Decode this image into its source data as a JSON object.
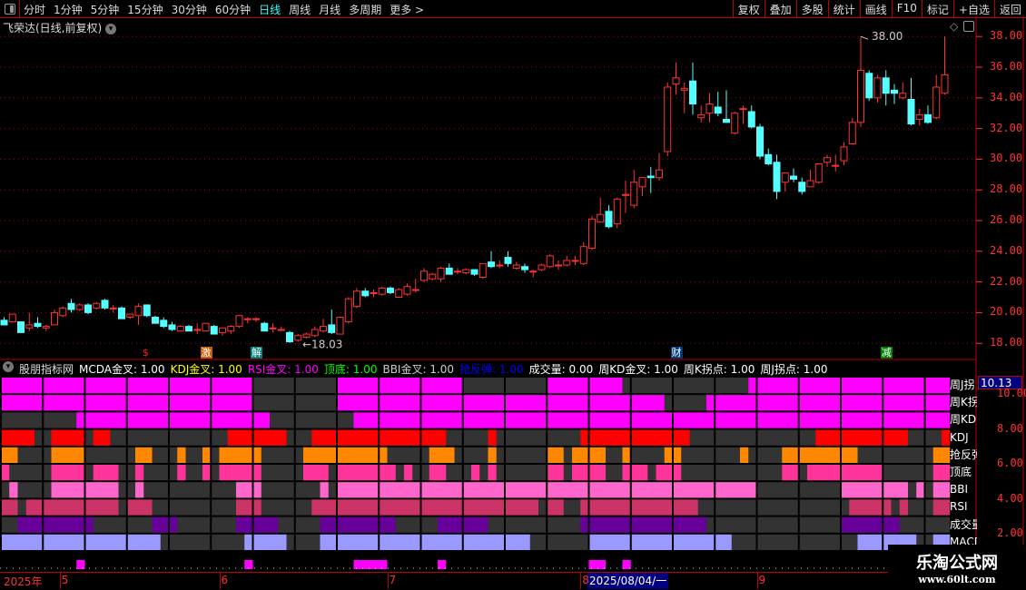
{
  "toolbar": {
    "periods": [
      "分时",
      "1分钟",
      "5分钟",
      "15分钟",
      "30分钟",
      "60分钟",
      "日线",
      "周线",
      "月线",
      "多周期",
      "更多 >"
    ],
    "active_period": "日线",
    "buttons": [
      "复权",
      "叠加",
      "多股",
      "统计",
      "画线",
      "F10",
      "标记",
      "+自选",
      "返回"
    ]
  },
  "stock_title": "飞荣达(日线,前复权)",
  "colors": {
    "up": "#ff3333",
    "down": "#54ffff",
    "axis": "#ff3333",
    "grid": "#aa0000"
  },
  "price_axis": {
    "labels": [
      "38.00",
      "36.00",
      "34.00",
      "32.00",
      "30.00",
      "28.00",
      "26.00",
      "24.00",
      "22.00",
      "20.00",
      "18.00"
    ],
    "max_label": "38.00",
    "min_label": "18.03"
  },
  "markers": [
    {
      "text": "$",
      "day": 17,
      "color": "#ff2222",
      "bg": "transparent"
    },
    {
      "text": "激",
      "day": 24,
      "color": "#fff",
      "bg": "#c85a00"
    },
    {
      "text": "解",
      "day": 30,
      "color": "#fff",
      "bg": "#008080"
    },
    {
      "text": "财",
      "day": 80,
      "color": "#fff",
      "bg": "#003a7a"
    },
    {
      "text": "减",
      "day": 105,
      "color": "#fff",
      "bg": "#008000"
    }
  ],
  "indicator": {
    "name": "股朋指标网",
    "items": [
      {
        "label": "MCDA金叉: 1.00",
        "color": "#ffffff"
      },
      {
        "label": "KDJ金叉: 1.00",
        "color": "#ffff00"
      },
      {
        "label": "RSI金叉: 1.00",
        "color": "#ff00ff"
      },
      {
        "label": "顶底: 1.00",
        "color": "#00ff00"
      },
      {
        "label": "BBI金叉: 1.00",
        "color": "#cccccc"
      },
      {
        "label": "抢反弹: 1.00",
        "color": "#0000ff"
      },
      {
        "label": "成交量: 0.00",
        "color": "#ffffff"
      },
      {
        "label": "周KD金叉: 1.00",
        "color": "#ffffff"
      },
      {
        "label": "周K拐点: 1.00",
        "color": "#ffffff"
      },
      {
        "label": "周J拐点: 1.00",
        "color": "#ffffff"
      }
    ],
    "axis_labels": [
      "10.00",
      "8.00",
      "6.00",
      "4.00",
      "2.00"
    ],
    "current_value": "10.13"
  },
  "chart_data": {
    "type": "candlestick",
    "ylim": [
      17,
      39
    ],
    "candles": [
      [
        19.5,
        19.7,
        19.2,
        19.2
      ],
      [
        19.4,
        19.9,
        19.4,
        19.9
      ],
      [
        19.4,
        19.4,
        18.7,
        18.7
      ],
      [
        19.0,
        20.0,
        18.8,
        19.2
      ],
      [
        19.3,
        19.7,
        19.0,
        19.1
      ],
      [
        19.0,
        19.2,
        18.8,
        19.1
      ],
      [
        19.2,
        20.2,
        19.2,
        20.0
      ],
      [
        19.8,
        20.4,
        19.7,
        20.3
      ],
      [
        20.6,
        20.9,
        20.0,
        20.2
      ],
      [
        20.2,
        20.6,
        20.1,
        20.5
      ],
      [
        20.5,
        20.6,
        19.9,
        20.0
      ],
      [
        20.3,
        20.7,
        20.2,
        20.6
      ],
      [
        20.8,
        20.9,
        20.2,
        20.3
      ],
      [
        20.3,
        20.5,
        20.0,
        20.3
      ],
      [
        20.3,
        20.4,
        19.6,
        19.6
      ],
      [
        19.7,
        19.9,
        19.6,
        19.9
      ],
      [
        19.8,
        20.6,
        19.2,
        20.4
      ],
      [
        20.5,
        20.5,
        19.7,
        19.8
      ],
      [
        19.7,
        19.8,
        19.3,
        19.3
      ],
      [
        19.5,
        19.7,
        19.0,
        19.1
      ],
      [
        19.2,
        19.4,
        18.8,
        18.9
      ],
      [
        18.8,
        19.2,
        18.8,
        19.1
      ],
      [
        19.1,
        19.2,
        18.8,
        18.8
      ],
      [
        18.9,
        19.3,
        18.6,
        18.9
      ],
      [
        18.8,
        19.3,
        18.8,
        19.3
      ],
      [
        19.1,
        19.2,
        18.6,
        18.6
      ],
      [
        18.7,
        19.0,
        18.5,
        19.0
      ],
      [
        18.8,
        19.2,
        18.6,
        19.1
      ],
      [
        19.1,
        19.8,
        19.0,
        19.8
      ],
      [
        19.6,
        19.7,
        19.3,
        19.6
      ],
      [
        19.6,
        19.7,
        19.4,
        19.6
      ],
      [
        19.3,
        19.4,
        18.8,
        18.8
      ],
      [
        19.0,
        19.3,
        18.7,
        19.0
      ],
      [
        18.9,
        19.1,
        18.8,
        18.9
      ],
      [
        18.7,
        18.8,
        18.03,
        18.1
      ],
      [
        18.2,
        18.6,
        18.1,
        18.5
      ],
      [
        18.4,
        18.7,
        18.3,
        18.6
      ],
      [
        18.5,
        19.1,
        18.4,
        18.9
      ],
      [
        18.8,
        19.6,
        18.7,
        19.1
      ],
      [
        19.2,
        20.2,
        18.6,
        18.7
      ],
      [
        18.6,
        19.7,
        18.6,
        19.7
      ],
      [
        19.4,
        21.0,
        19.3,
        20.9
      ],
      [
        20.4,
        21.6,
        20.3,
        21.4
      ],
      [
        21.4,
        21.6,
        21.0,
        21.1
      ],
      [
        21.3,
        21.5,
        21.0,
        21.3
      ],
      [
        21.2,
        21.7,
        21.1,
        21.6
      ],
      [
        21.6,
        21.7,
        21.2,
        21.3
      ],
      [
        21.0,
        21.6,
        21.0,
        21.5
      ],
      [
        21.2,
        21.9,
        21.1,
        21.7
      ],
      [
        21.5,
        22.2,
        21.3,
        21.5
      ],
      [
        22.1,
        22.9,
        22.0,
        22.7
      ],
      [
        22.2,
        22.6,
        22.1,
        22.5
      ],
      [
        22.2,
        23.0,
        22.0,
        22.9
      ],
      [
        22.9,
        23.2,
        22.5,
        22.5
      ],
      [
        22.7,
        22.9,
        22.5,
        22.7
      ],
      [
        22.6,
        22.9,
        22.5,
        22.8
      ],
      [
        22.8,
        22.8,
        22.4,
        22.5
      ],
      [
        22.3,
        23.2,
        22.2,
        23.2
      ],
      [
        23.3,
        24.0,
        22.9,
        23.0
      ],
      [
        23.1,
        23.4,
        22.9,
        23.1
      ],
      [
        23.6,
        24.0,
        23.0,
        23.2
      ],
      [
        22.9,
        23.3,
        22.8,
        23.1
      ],
      [
        23.0,
        23.2,
        22.6,
        22.8
      ],
      [
        22.7,
        22.8,
        22.3,
        22.7
      ],
      [
        22.8,
        23.2,
        22.7,
        23.1
      ],
      [
        23.0,
        23.8,
        22.9,
        23.7
      ],
      [
        23.1,
        23.4,
        22.8,
        23.1
      ],
      [
        23.1,
        23.7,
        23.0,
        23.4
      ],
      [
        23.4,
        23.7,
        23.1,
        23.4
      ],
      [
        23.2,
        24.6,
        23.1,
        24.3
      ],
      [
        24.2,
        26.3,
        24.1,
        26.1
      ],
      [
        25.9,
        27.5,
        25.9,
        26.4
      ],
      [
        26.6,
        27.0,
        25.5,
        25.6
      ],
      [
        25.8,
        27.5,
        25.5,
        27.4
      ],
      [
        27.7,
        28.6,
        26.5,
        27.7
      ],
      [
        27.0,
        29.3,
        26.8,
        28.5
      ],
      [
        28.2,
        28.8,
        27.6,
        28.8
      ],
      [
        28.9,
        29.5,
        27.8,
        28.8
      ],
      [
        28.8,
        30.4,
        28.6,
        29.3
      ],
      [
        30.5,
        35.0,
        30.2,
        34.7
      ],
      [
        34.9,
        36.3,
        34.2,
        35.3
      ],
      [
        34.5,
        35.0,
        33.0,
        34.6
      ],
      [
        35.1,
        36.3,
        32.9,
        33.6
      ],
      [
        32.7,
        33.5,
        32.4,
        32.9
      ],
      [
        33.0,
        34.3,
        32.4,
        33.6
      ],
      [
        33.4,
        34.4,
        32.8,
        33.0
      ],
      [
        32.6,
        34.5,
        32.4,
        32.4
      ],
      [
        31.7,
        33.1,
        31.6,
        33.0
      ],
      [
        33.3,
        33.5,
        32.3,
        33.3
      ],
      [
        33.1,
        33.5,
        32.0,
        32.1
      ],
      [
        32.1,
        32.3,
        30.0,
        30.2
      ],
      [
        30.3,
        30.7,
        29.6,
        29.7
      ],
      [
        29.8,
        30.3,
        27.4,
        27.9
      ],
      [
        28.5,
        29.1,
        27.9,
        29.1
      ],
      [
        28.9,
        29.4,
        28.5,
        28.7
      ],
      [
        28.5,
        28.8,
        27.7,
        27.9
      ],
      [
        28.2,
        29.3,
        28.2,
        28.6
      ],
      [
        28.5,
        29.7,
        28.4,
        29.7
      ],
      [
        29.8,
        30.3,
        29.5,
        30.1
      ],
      [
        29.6,
        30.3,
        29.2,
        29.6
      ],
      [
        29.9,
        31.1,
        29.6,
        30.8
      ],
      [
        31.0,
        32.7,
        31.0,
        32.4
      ],
      [
        32.4,
        38.0,
        32.1,
        35.8
      ],
      [
        35.6,
        35.8,
        33.8,
        34.0
      ],
      [
        34.0,
        35.5,
        33.7,
        35.3
      ],
      [
        35.3,
        35.8,
        33.5,
        34.3
      ],
      [
        34.5,
        34.9,
        33.6,
        34.3
      ],
      [
        34.0,
        35.0,
        33.9,
        34.3
      ],
      [
        33.9,
        35.3,
        32.2,
        32.3
      ],
      [
        32.6,
        33.3,
        32.2,
        32.9
      ],
      [
        32.9,
        33.5,
        32.3,
        32.4
      ],
      [
        32.7,
        35.5,
        32.6,
        34.7
      ],
      [
        34.3,
        38.0,
        34.2,
        35.5
      ]
    ],
    "bands": [
      {
        "label": "周J拐",
        "color": "#ff00ff",
        "on": [
          [
            0,
            30
          ],
          [
            40,
            55
          ],
          [
            65,
            74
          ],
          [
            89,
            113
          ]
        ]
      },
      {
        "label": "周K拐",
        "color": "#ff00ff",
        "on": [
          [
            0,
            30
          ],
          [
            40,
            79
          ],
          [
            84,
            113
          ]
        ]
      },
      {
        "label": "周KD",
        "color": "#ff00ff",
        "on": [
          [
            9,
            32
          ],
          [
            42,
            113
          ]
        ]
      },
      {
        "label": "KDJ",
        "color": "#ff0000",
        "on": [
          [
            0,
            4
          ],
          [
            6,
            10
          ],
          [
            11,
            13
          ],
          [
            27,
            34
          ],
          [
            37,
            53
          ],
          [
            58,
            59
          ],
          [
            69,
            82
          ],
          [
            97,
            108
          ],
          [
            112,
            113
          ]
        ]
      },
      {
        "label": "抢反弹",
        "color": "#ff8800",
        "on": [
          [
            0,
            2
          ],
          [
            6,
            10
          ],
          [
            16,
            18
          ],
          [
            21,
            22
          ],
          [
            24,
            25
          ],
          [
            26,
            31
          ],
          [
            36,
            46
          ],
          [
            51,
            54
          ],
          [
            58,
            59
          ],
          [
            65,
            67
          ],
          [
            68,
            72
          ],
          [
            74,
            75
          ],
          [
            79,
            81
          ],
          [
            88,
            89
          ],
          [
            93,
            102
          ],
          [
            111,
            113
          ]
        ]
      },
      {
        "label": "顶底",
        "color": "#ff3399",
        "on": [
          [
            0,
            1
          ],
          [
            6,
            10
          ],
          [
            11,
            14
          ],
          [
            16,
            17
          ],
          [
            21,
            22
          ],
          [
            24,
            25
          ],
          [
            26,
            31
          ],
          [
            36,
            39
          ],
          [
            40,
            47
          ],
          [
            48,
            49
          ],
          [
            51,
            53
          ],
          [
            56,
            57
          ],
          [
            58,
            59
          ],
          [
            65,
            67
          ],
          [
            68,
            72
          ],
          [
            74,
            77
          ],
          [
            78,
            81
          ],
          [
            93,
            95
          ],
          [
            96,
            105
          ],
          [
            111,
            113
          ]
        ]
      },
      {
        "label": "BBI",
        "color": "#ff66cc",
        "on": [
          [
            1,
            2
          ],
          [
            6,
            14
          ],
          [
            16,
            17
          ],
          [
            28,
            31
          ],
          [
            38,
            39
          ],
          [
            40,
            90
          ],
          [
            100,
            108
          ],
          [
            109,
            110
          ],
          [
            111,
            113
          ]
        ]
      },
      {
        "label": "RSI",
        "color": "#cc3366",
        "on": [
          [
            0,
            2
          ],
          [
            3,
            14
          ],
          [
            15,
            18
          ],
          [
            28,
            31
          ],
          [
            37,
            64
          ],
          [
            65,
            67
          ],
          [
            69,
            83
          ],
          [
            101,
            106
          ],
          [
            107,
            108
          ],
          [
            111,
            113
          ]
        ]
      },
      {
        "label": "成交量",
        "color": "#660099",
        "on": [
          [
            2,
            11
          ],
          [
            18,
            21
          ],
          [
            28,
            33
          ],
          [
            38,
            47
          ],
          [
            52,
            58
          ],
          [
            69,
            84
          ],
          [
            100,
            107
          ]
        ]
      },
      {
        "label": "MACD",
        "color": "#9999ff",
        "on": [
          [
            0,
            19
          ],
          [
            29,
            34
          ],
          [
            38,
            63
          ],
          [
            70,
            87
          ],
          [
            102,
            109
          ],
          [
            111,
            113
          ]
        ]
      }
    ],
    "signal_row": {
      "color": "#ff00ff",
      "on": [
        [
          9,
          10
        ],
        [
          29,
          30
        ],
        [
          42,
          46
        ],
        [
          52,
          53
        ],
        [
          70,
          72
        ],
        [
          74,
          75
        ]
      ]
    }
  },
  "time_axis": {
    "year": "2025年",
    "months": [
      {
        "label": "5",
        "day": 7
      },
      {
        "label": "6",
        "day": 26
      },
      {
        "label": "7",
        "day": 46
      },
      {
        "label": "8",
        "day": 69
      },
      {
        "label": "9",
        "day": 90
      }
    ],
    "cursor_date": "2025/08/04/一"
  }
}
